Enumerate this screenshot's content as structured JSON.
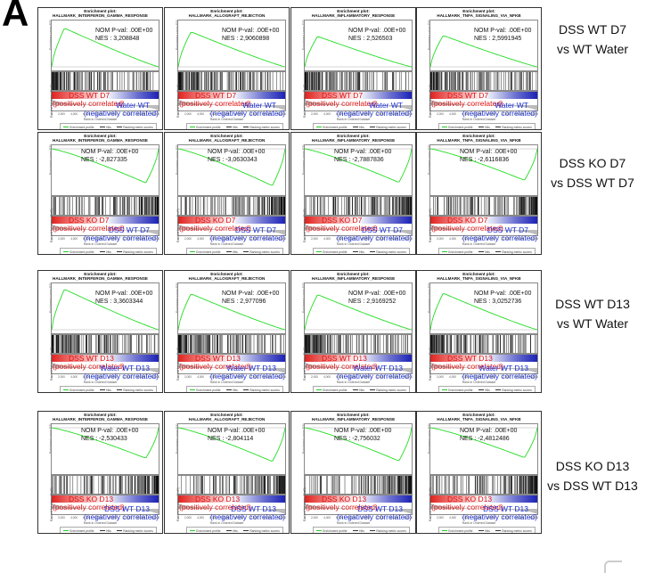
{
  "panel_letter": "A",
  "figure_common": {
    "enrichment_title": "Enrichment plot:",
    "es_ylabel": "Enrichment score (ES)",
    "rank_ylabel": "Ranked list metric (PreR)",
    "x_ticks": [
      "0",
      "2,000",
      "4,000",
      "6,000",
      "8,000",
      "10,000",
      "12,000",
      "14,000",
      "16,000"
    ],
    "xlabel": "Rank in Ordered Dataset",
    "legend": [
      "Enrichment profile",
      "Hits",
      "Ranking metric scores"
    ],
    "pos_correlated": "(positively correlated)",
    "neg_correlated": "(negatively correlated)"
  },
  "rows": [
    {
      "label_line1": "DSS WT D7",
      "label_line2": "vs WT Water",
      "pos_group": "DSS WT D7",
      "neg_group": "Water WT",
      "plots": [
        {
          "gene_set": "HALLMARK_INTERFERON_GAMMA_RESPONSE",
          "pval": "NOM P-val: .00E+00",
          "nes": "NES : 3,208848",
          "nes_value": 3.208848
        },
        {
          "gene_set": "HALLMARK_ALLOGRAFT_REJECTION",
          "pval": "NOM P-val: .00E+00",
          "nes": "NES : 2,9060898",
          "nes_value": 2.9060898
        },
        {
          "gene_set": "HALLMARK_INFLAMMATORY_RESPONSE",
          "pval": "NOM P-val: .00E+00",
          "nes": "NES : 2,526503",
          "nes_value": 2.526503
        },
        {
          "gene_set": "HALLMARK_TNFA_SIGNALING_VIA_NFKB",
          "pval": "NOM P-val: .00E+00",
          "nes": "NES : 2,5991945",
          "nes_value": 2.5991945
        }
      ]
    },
    {
      "label_line1": "DSS KO D7",
      "label_line2": "vs DSS WT D7",
      "pos_group": "DSS KO D7",
      "neg_group": "DSS WT D7",
      "plots": [
        {
          "gene_set": "HALLMARK_INTERFERON_GAMMA_RESPONSE",
          "pval": "NOM P-val: .00E+00",
          "nes": "NES : -2,827335",
          "nes_value": -2.827335
        },
        {
          "gene_set": "HALLMARK_ALLOGRAFT_REJECTION",
          "pval": "NOM P-val: .00E+00",
          "nes": "NES : -3,0630343",
          "nes_value": -3.0630343
        },
        {
          "gene_set": "HALLMARK_INFLAMMATORY_RESPONSE",
          "pval": "NOM P-val: .00E+00",
          "nes": "NES : -2,7887836",
          "nes_value": -2.7887836
        },
        {
          "gene_set": "HALLMARK_TNFA_SIGNALING_VIA_NFKB",
          "pval": "NOM P-val: .00E+00",
          "nes": "NES : -2,6116836",
          "nes_value": -2.6116836
        }
      ]
    },
    {
      "label_line1": "DSS WT D13",
      "label_line2": "vs WT Water",
      "pos_group": "DSS WT D13",
      "neg_group": "Water WT D13",
      "plots": [
        {
          "gene_set": "HALLMARK_INTERFERON_GAMMA_RESPONSE",
          "pval": "NOM P-val: .00E+00",
          "nes": "NES : 3,3603344",
          "nes_value": 3.3603344
        },
        {
          "gene_set": "HALLMARK_ALLOGRAFT_REJECTION",
          "pval": "NOM P-val: .00E+00",
          "nes": "NES : 2,977096",
          "nes_value": 2.977096
        },
        {
          "gene_set": "HALLMARK_INFLAMMATORY_RESPONSE",
          "pval": "NOM P-val: .00E+00",
          "nes": "NES : 2,9169252",
          "nes_value": 2.9169252
        },
        {
          "gene_set": "HALLMARK_TNFA_SIGNALING_VIA_NFKB",
          "pval": "NOM P-val: .00E+00",
          "nes": "NES : 3,0252736",
          "nes_value": 3.0252736
        }
      ]
    },
    {
      "label_line1": "DSS KO D13",
      "label_line2": "vs DSS WT D13",
      "pos_group": "DSS KO D13",
      "neg_group": "DSS WT D13",
      "plots": [
        {
          "gene_set": "HALLMARK_INTERFERON_GAMMA_RESPONSE",
          "pval": "NOM P-val: .00E+00",
          "nes": "NES : -2,530433",
          "nes_value": -2.530433
        },
        {
          "gene_set": "HALLMARK_ALLOGRAFT_REJECTION",
          "pval": "NOM P-val: .00E+00",
          "nes": "NES : -2,804114",
          "nes_value": -2.804114
        },
        {
          "gene_set": "HALLMARK_INFLAMMATORY_RESPONSE",
          "pval": "NOM P-val: .00E+00",
          "nes": "NES : -2,756032",
          "nes_value": -2.756032
        },
        {
          "gene_set": "HALLMARK_TNFA_SIGNALING_VIA_NFKB",
          "pval": "NOM P-val: .00E+00",
          "nes": "NES : -2,4812486",
          "nes_value": -2.4812486
        }
      ]
    }
  ],
  "colors": {
    "curve": "#22dd22",
    "positive_text": "#dd1111",
    "negative_text": "#1a2fd6",
    "hits": "#111111"
  }
}
